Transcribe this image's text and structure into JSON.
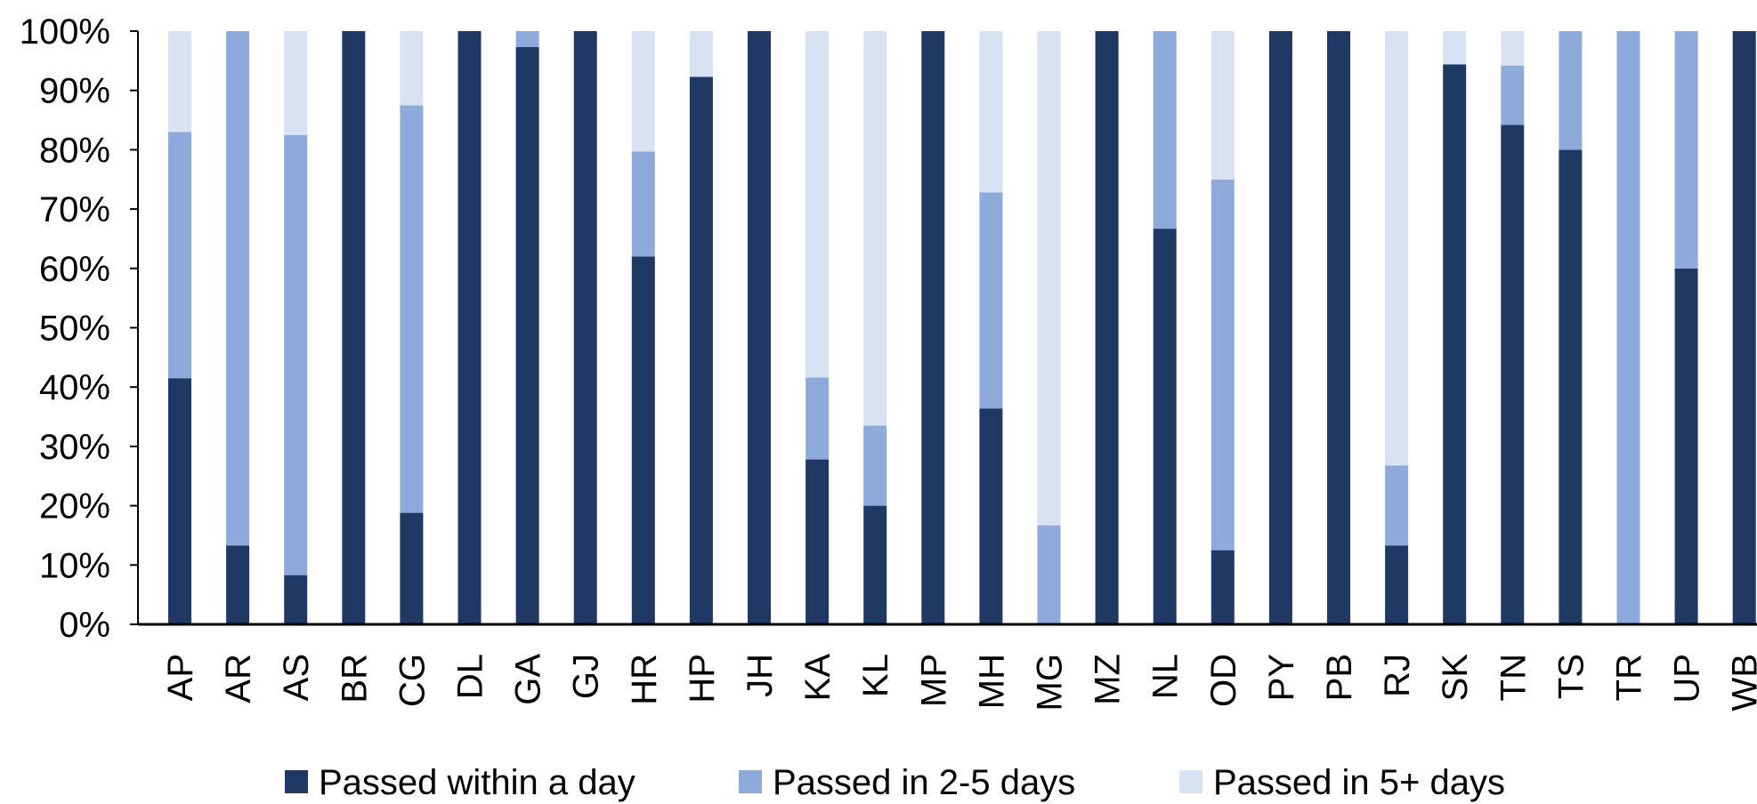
{
  "chart_data": {
    "type": "bar",
    "stacked": true,
    "categories": [
      "AP",
      "AR",
      "AS",
      "BR",
      "CG",
      "DL",
      "GA",
      "GJ",
      "HR",
      "HP",
      "JH",
      "KA",
      "KL",
      "MP",
      "MH",
      "MG",
      "MZ",
      "NL",
      "OD",
      "PY",
      "PB",
      "RJ",
      "SK",
      "TN",
      "TS",
      "TR",
      "UP",
      "WB"
    ],
    "series": [
      {
        "name": "Passed within a day",
        "color": "#1f3864",
        "values": [
          41.5,
          13.3,
          8.3,
          100,
          18.8,
          100,
          97.3,
          100,
          62,
          92.3,
          100,
          27.8,
          20,
          100,
          36.4,
          0,
          100,
          66.7,
          12.5,
          100,
          100,
          13.3,
          94.4,
          84.2,
          80,
          0,
          60,
          100
        ]
      },
      {
        "name": "Passed in 2-5 days",
        "color": "#8eaadb",
        "values": [
          41.5,
          86.7,
          74.2,
          0,
          68.7,
          0,
          2.7,
          0,
          17.7,
          0,
          0,
          13.8,
          13.5,
          0,
          36.4,
          16.7,
          0,
          33.3,
          62.5,
          0,
          0,
          13.5,
          0,
          10,
          20,
          100,
          40,
          0
        ]
      },
      {
        "name": "Passed in 5+ days",
        "color": "#d9e2f3",
        "values": [
          17,
          0,
          17.5,
          0,
          12.5,
          0,
          0,
          0,
          20.3,
          7.7,
          0,
          58.4,
          66.5,
          0,
          27.2,
          83.3,
          0,
          0,
          25,
          0,
          0,
          73.2,
          5.6,
          5.8,
          0,
          0,
          0,
          0
        ]
      }
    ],
    "ylim": [
      0,
      100
    ],
    "yticks": [
      "0%",
      "10%",
      "20%",
      "30%",
      "40%",
      "50%",
      "60%",
      "70%",
      "80%",
      "90%",
      "100%"
    ],
    "grid": false,
    "legend_position": "bottom"
  }
}
